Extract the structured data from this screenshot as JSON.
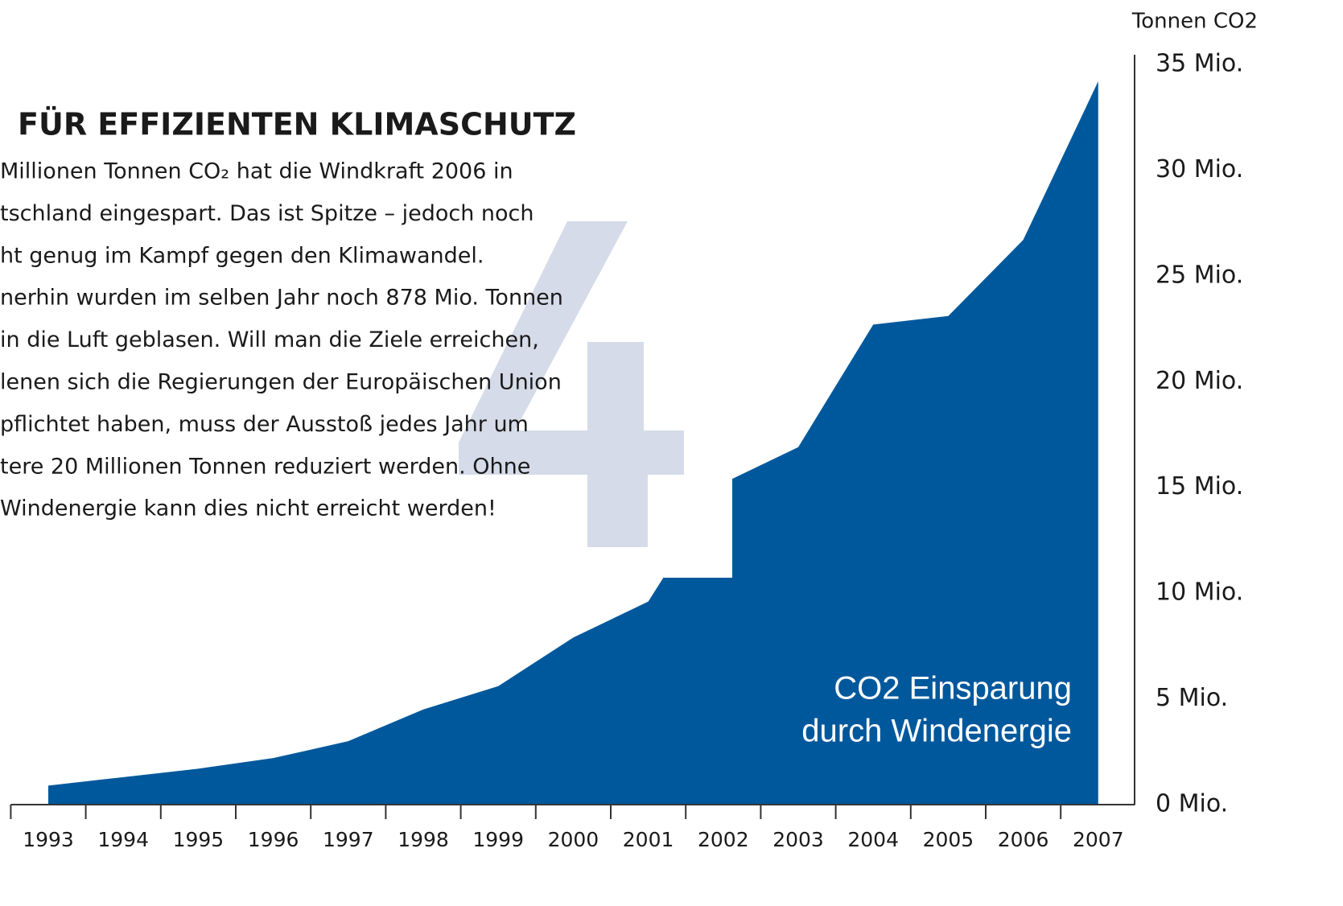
{
  "chart_data": {
    "type": "area",
    "y_axis_label": "Tonnen CO2",
    "categories": [
      "1993",
      "1994",
      "1995",
      "1996",
      "1997",
      "1998",
      "1999",
      "2000",
      "2001",
      "2002",
      "2003",
      "2004",
      "2005",
      "2006",
      "2007"
    ],
    "values": [
      0.9,
      1.3,
      1.7,
      2.2,
      3.0,
      4.5,
      5.6,
      7.9,
      9.6,
      15.2,
      16.9,
      22.7,
      23.1,
      26.7,
      34.2
    ],
    "color": "#00589c",
    "ylim": [
      0,
      35
    ],
    "yticks": [
      {
        "value": 0,
        "label": "0 Mio."
      },
      {
        "value": 5,
        "label": "5 Mio."
      },
      {
        "value": 10,
        "label": "10 Mio."
      },
      {
        "value": 15,
        "label": "15 Mio."
      },
      {
        "value": 20,
        "label": "20 Mio."
      },
      {
        "value": 25,
        "label": "25 Mio."
      },
      {
        "value": 30,
        "label": "30 Mio."
      },
      {
        "value": 35,
        "label": "35 Mio."
      }
    ],
    "annotation": [
      "CO2 Einsparung",
      "durch Windenergie"
    ]
  },
  "text_box": {
    "title": "FÜR EFFIZIENTEN KLIMASCHUTZ",
    "lines": [
      "Millionen Tonnen CO₂ hat die Windkraft 2006 in",
      "tschland eingespart. Das ist Spitze – jedoch noch",
      "ht genug im Kampf gegen den Klimawandel.",
      "nerhin wurden im selben Jahr noch 878 Mio. Tonnen",
      "in die Luft geblasen. Will man die Ziele erreichen,",
      "lenen sich die Regierungen der Europäischen Union",
      "pflichtet haben, muss der Ausstoß jedes Jahr um",
      "tere 20 Millionen Tonnen reduziert werden. Ohne",
      "Windenergie kann dies nicht erreicht werden!"
    ]
  }
}
